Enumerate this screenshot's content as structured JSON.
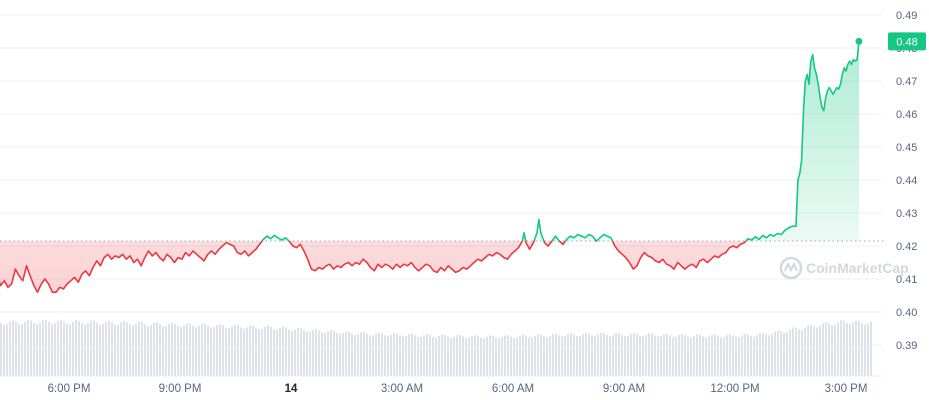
{
  "chart_data": {
    "type": "area",
    "baseline": 0.4215,
    "ylim": [
      0.384,
      0.492
    ],
    "y_ticks": [
      0.49,
      0.48,
      0.47,
      0.46,
      0.45,
      0.44,
      0.43,
      0.42,
      0.41,
      0.4,
      0.39
    ],
    "y_tick_labels": [
      "0.49",
      "0.48",
      "0.47",
      "0.46",
      "0.45",
      "0.44",
      "0.43",
      "0.42",
      "0.41",
      "0.40",
      "0.39"
    ],
    "x_ticks": [
      {
        "label": "6:00 PM",
        "hour": 18,
        "bold": false
      },
      {
        "label": "9:00 PM",
        "hour": 21,
        "bold": false
      },
      {
        "label": "14",
        "hour": 24,
        "bold": true
      },
      {
        "label": "3:00 AM",
        "hour": 27,
        "bold": false
      },
      {
        "label": "6:00 AM",
        "hour": 30,
        "bold": false
      },
      {
        "label": "9:00 AM",
        "hour": 33,
        "bold": false
      },
      {
        "label": "12:00 PM",
        "hour": 36,
        "bold": false
      },
      {
        "label": "3:00 PM",
        "hour": 39,
        "bold": false
      }
    ],
    "xlim": [
      15.65,
      39.6
    ],
    "current_price_label": "0.48",
    "colors": {
      "up": "#16c784",
      "down": "#ea3943",
      "volume": "#dfe2e8",
      "grid": "#f0f2f5"
    },
    "series": [
      {
        "values": [
          [
            15.65,
            0.4215
          ],
          [
            15.75,
            0.42
          ],
          [
            15.85,
            0.4185
          ],
          [
            15.95,
            0.416
          ],
          [
            16.05,
            0.412
          ],
          [
            16.15,
            0.408
          ],
          [
            16.25,
            0.4095
          ],
          [
            16.35,
            0.4075
          ],
          [
            16.45,
            0.4085
          ],
          [
            16.55,
            0.413
          ],
          [
            16.65,
            0.411
          ],
          [
            16.75,
            0.4095
          ],
          [
            16.85,
            0.414
          ],
          [
            16.95,
            0.411
          ],
          [
            17.05,
            0.408
          ],
          [
            17.15,
            0.406
          ],
          [
            17.25,
            0.4085
          ],
          [
            17.35,
            0.41
          ],
          [
            17.45,
            0.4085
          ],
          [
            17.55,
            0.406
          ],
          [
            17.65,
            0.406
          ],
          [
            17.75,
            0.4075
          ],
          [
            17.85,
            0.407
          ],
          [
            17.95,
            0.4085
          ],
          [
            18.05,
            0.4095
          ],
          [
            18.15,
            0.4105
          ],
          [
            18.25,
            0.409
          ],
          [
            18.35,
            0.4115
          ],
          [
            18.45,
            0.4125
          ],
          [
            18.55,
            0.411
          ],
          [
            18.65,
            0.4135
          ],
          [
            18.75,
            0.4155
          ],
          [
            18.85,
            0.414
          ],
          [
            18.95,
            0.4165
          ],
          [
            19.05,
            0.4175
          ],
          [
            19.15,
            0.416
          ],
          [
            19.25,
            0.417
          ],
          [
            19.35,
            0.4165
          ],
          [
            19.45,
            0.4175
          ],
          [
            19.55,
            0.416
          ],
          [
            19.65,
            0.417
          ],
          [
            19.75,
            0.415
          ],
          [
            19.85,
            0.416
          ],
          [
            19.95,
            0.414
          ],
          [
            20.05,
            0.4165
          ],
          [
            20.15,
            0.4185
          ],
          [
            20.25,
            0.417
          ],
          [
            20.35,
            0.418
          ],
          [
            20.45,
            0.4165
          ],
          [
            20.55,
            0.4155
          ],
          [
            20.65,
            0.4175
          ],
          [
            20.75,
            0.4165
          ],
          [
            20.85,
            0.415
          ],
          [
            20.95,
            0.4165
          ],
          [
            21.05,
            0.416
          ],
          [
            21.15,
            0.418
          ],
          [
            21.25,
            0.417
          ],
          [
            21.35,
            0.4185
          ],
          [
            21.45,
            0.4175
          ],
          [
            21.55,
            0.4165
          ],
          [
            21.65,
            0.4155
          ],
          [
            21.75,
            0.4175
          ],
          [
            21.85,
            0.4185
          ],
          [
            21.95,
            0.4175
          ],
          [
            22.05,
            0.419
          ],
          [
            22.15,
            0.42
          ],
          [
            22.25,
            0.421
          ],
          [
            22.35,
            0.4205
          ],
          [
            22.45,
            0.42
          ],
          [
            22.55,
            0.418
          ],
          [
            22.65,
            0.4175
          ],
          [
            22.75,
            0.4185
          ],
          [
            22.85,
            0.417
          ],
          [
            22.95,
            0.418
          ],
          [
            23.05,
            0.419
          ],
          [
            23.15,
            0.4205
          ],
          [
            23.25,
            0.422
          ],
          [
            23.35,
            0.423
          ],
          [
            23.45,
            0.4222
          ],
          [
            23.55,
            0.4232
          ],
          [
            23.65,
            0.4225
          ],
          [
            23.75,
            0.4218
          ],
          [
            23.85,
            0.4225
          ],
          [
            23.95,
            0.4215
          ],
          [
            24.05,
            0.42
          ],
          [
            24.15,
            0.4195
          ],
          [
            24.25,
            0.4205
          ],
          [
            24.35,
            0.4185
          ],
          [
            24.45,
            0.416
          ],
          [
            24.55,
            0.413
          ],
          [
            24.65,
            0.4125
          ],
          [
            24.75,
            0.4135
          ],
          [
            24.85,
            0.413
          ],
          [
            24.95,
            0.414
          ],
          [
            25.05,
            0.4145
          ],
          [
            25.15,
            0.413
          ],
          [
            25.25,
            0.414
          ],
          [
            25.35,
            0.4135
          ],
          [
            25.45,
            0.4145
          ],
          [
            25.55,
            0.415
          ],
          [
            25.65,
            0.414
          ],
          [
            25.75,
            0.415
          ],
          [
            25.85,
            0.4145
          ],
          [
            25.95,
            0.416
          ],
          [
            26.05,
            0.415
          ],
          [
            26.15,
            0.4135
          ],
          [
            26.25,
            0.4125
          ],
          [
            26.35,
            0.4145
          ],
          [
            26.45,
            0.4135
          ],
          [
            26.55,
            0.4145
          ],
          [
            26.65,
            0.414
          ],
          [
            26.75,
            0.413
          ],
          [
            26.85,
            0.4145
          ],
          [
            26.95,
            0.4135
          ],
          [
            27.05,
            0.4145
          ],
          [
            27.15,
            0.414
          ],
          [
            27.25,
            0.415
          ],
          [
            27.35,
            0.4135
          ],
          [
            27.45,
            0.4125
          ],
          [
            27.55,
            0.4135
          ],
          [
            27.65,
            0.4145
          ],
          [
            27.75,
            0.414
          ],
          [
            27.85,
            0.4125
          ],
          [
            27.95,
            0.412
          ],
          [
            28.05,
            0.4135
          ],
          [
            28.15,
            0.4125
          ],
          [
            28.25,
            0.414
          ],
          [
            28.35,
            0.413
          ],
          [
            28.45,
            0.412
          ],
          [
            28.55,
            0.4125
          ],
          [
            28.65,
            0.4135
          ],
          [
            28.75,
            0.413
          ],
          [
            28.85,
            0.414
          ],
          [
            28.95,
            0.415
          ],
          [
            29.05,
            0.416
          ],
          [
            29.15,
            0.4155
          ],
          [
            29.25,
            0.4165
          ],
          [
            29.35,
            0.4175
          ],
          [
            29.45,
            0.417
          ],
          [
            29.55,
            0.418
          ],
          [
            29.65,
            0.4175
          ],
          [
            29.75,
            0.4165
          ],
          [
            29.85,
            0.416
          ],
          [
            29.95,
            0.4175
          ],
          [
            30.05,
            0.4185
          ],
          [
            30.15,
            0.4195
          ],
          [
            30.25,
            0.4215
          ],
          [
            30.3,
            0.424
          ],
          [
            30.35,
            0.421
          ],
          [
            30.45,
            0.419
          ],
          [
            30.55,
            0.421
          ],
          [
            30.65,
            0.424
          ],
          [
            30.7,
            0.428
          ],
          [
            30.75,
            0.424
          ],
          [
            30.85,
            0.421
          ],
          [
            30.95,
            0.42
          ],
          [
            31.05,
            0.4215
          ],
          [
            31.15,
            0.423
          ],
          [
            31.25,
            0.4215
          ],
          [
            31.35,
            0.4205
          ],
          [
            31.45,
            0.422
          ],
          [
            31.55,
            0.423
          ],
          [
            31.65,
            0.4225
          ],
          [
            31.75,
            0.4235
          ],
          [
            31.85,
            0.423
          ],
          [
            31.95,
            0.4225
          ],
          [
            32.05,
            0.4235
          ],
          [
            32.15,
            0.423
          ],
          [
            32.25,
            0.4215
          ],
          [
            32.35,
            0.4225
          ],
          [
            32.45,
            0.4235
          ],
          [
            32.55,
            0.423
          ],
          [
            32.65,
            0.4225
          ],
          [
            32.75,
            0.42
          ],
          [
            32.85,
            0.4185
          ],
          [
            32.95,
            0.4175
          ],
          [
            33.05,
            0.4165
          ],
          [
            33.15,
            0.415
          ],
          [
            33.25,
            0.413
          ],
          [
            33.35,
            0.414
          ],
          [
            33.45,
            0.4165
          ],
          [
            33.55,
            0.418
          ],
          [
            33.65,
            0.417
          ],
          [
            33.75,
            0.4165
          ],
          [
            33.85,
            0.4155
          ],
          [
            33.95,
            0.415
          ],
          [
            34.05,
            0.416
          ],
          [
            34.15,
            0.4145
          ],
          [
            34.25,
            0.414
          ],
          [
            34.35,
            0.413
          ],
          [
            34.45,
            0.415
          ],
          [
            34.55,
            0.414
          ],
          [
            34.65,
            0.413
          ],
          [
            34.75,
            0.414
          ],
          [
            34.85,
            0.4145
          ],
          [
            34.95,
            0.4135
          ],
          [
            35.05,
            0.4155
          ],
          [
            35.15,
            0.416
          ],
          [
            35.25,
            0.415
          ],
          [
            35.35,
            0.416
          ],
          [
            35.45,
            0.417
          ],
          [
            35.55,
            0.4165
          ],
          [
            35.65,
            0.4175
          ],
          [
            35.75,
            0.418
          ],
          [
            35.85,
            0.4195
          ],
          [
            35.95,
            0.42
          ],
          [
            36.05,
            0.4195
          ],
          [
            36.15,
            0.4205
          ],
          [
            36.25,
            0.421
          ],
          [
            36.35,
            0.4222
          ],
          [
            36.45,
            0.4218
          ],
          [
            36.55,
            0.4228
          ],
          [
            36.65,
            0.422
          ],
          [
            36.75,
            0.4232
          ],
          [
            36.85,
            0.4225
          ],
          [
            36.95,
            0.4235
          ],
          [
            37.05,
            0.423
          ],
          [
            37.15,
            0.4238
          ],
          [
            37.25,
            0.4235
          ],
          [
            37.35,
            0.4248
          ],
          [
            37.45,
            0.4255
          ],
          [
            37.55,
            0.426
          ],
          [
            37.65,
            0.426
          ],
          [
            37.7,
            0.44
          ],
          [
            37.75,
            0.442
          ],
          [
            37.8,
            0.446
          ],
          [
            37.85,
            0.461
          ],
          [
            37.9,
            0.47
          ],
          [
            37.95,
            0.472
          ],
          [
            38.0,
            0.469
          ],
          [
            38.05,
            0.476
          ],
          [
            38.1,
            0.478
          ],
          [
            38.15,
            0.474
          ],
          [
            38.2,
            0.472
          ],
          [
            38.25,
            0.469
          ],
          [
            38.3,
            0.465
          ],
          [
            38.35,
            0.462
          ],
          [
            38.4,
            0.461
          ],
          [
            38.45,
            0.465
          ],
          [
            38.5,
            0.467
          ],
          [
            38.55,
            0.468
          ],
          [
            38.6,
            0.467
          ],
          [
            38.65,
            0.466
          ],
          [
            38.7,
            0.467
          ],
          [
            38.75,
            0.468
          ],
          [
            38.8,
            0.4675
          ],
          [
            38.85,
            0.469
          ],
          [
            38.9,
            0.472
          ],
          [
            38.95,
            0.474
          ],
          [
            39.0,
            0.473
          ],
          [
            39.05,
            0.475
          ],
          [
            39.1,
            0.476
          ],
          [
            39.15,
            0.475
          ],
          [
            39.2,
            0.4765
          ],
          [
            39.25,
            0.476
          ],
          [
            39.3,
            0.4765
          ],
          [
            39.35,
            0.482
          ]
        ]
      }
    ],
    "volume": [
      [
        15.65,
        0.12
      ],
      [
        16.5,
        0.125
      ],
      [
        17.5,
        0.126
      ],
      [
        18.5,
        0.125
      ],
      [
        19.5,
        0.123
      ],
      [
        20.5,
        0.12
      ],
      [
        21.5,
        0.118
      ],
      [
        22.5,
        0.115
      ],
      [
        23.5,
        0.112
      ],
      [
        24.5,
        0.106
      ],
      [
        25.5,
        0.1
      ],
      [
        26.5,
        0.097
      ],
      [
        27.5,
        0.094
      ],
      [
        28.5,
        0.092
      ],
      [
        29.5,
        0.091
      ],
      [
        30.5,
        0.093
      ],
      [
        31.5,
        0.096
      ],
      [
        32.5,
        0.097
      ],
      [
        33.5,
        0.096
      ],
      [
        34.5,
        0.094
      ],
      [
        35.5,
        0.093
      ],
      [
        36.5,
        0.095
      ],
      [
        37.0,
        0.1
      ],
      [
        37.5,
        0.108
      ],
      [
        38.0,
        0.115
      ],
      [
        38.5,
        0.122
      ],
      [
        39.0,
        0.126
      ],
      [
        39.35,
        0.124
      ]
    ]
  },
  "watermark": {
    "text": "CoinMarketCap",
    "icon": "coinmarketcap-logo-icon"
  }
}
